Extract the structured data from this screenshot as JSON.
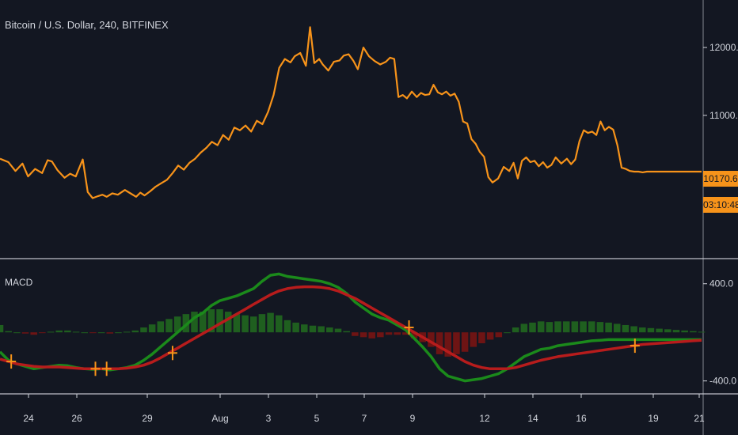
{
  "title": "Bitcoin / U.S. Dollar, 240, BITFINEX",
  "macd_label": "MACD",
  "last_price": "10170.6",
  "countdown": "03:10:48",
  "colors": {
    "background": "#131722",
    "price": "#f7931a",
    "macd": "#1b8a1b",
    "signal": "#b71c1c",
    "hist_up": "#1f5f1f",
    "hist_down": "#6e1414",
    "marker": "#f7931a",
    "separator": "#d1d4dc",
    "text": "#d1d4dc"
  },
  "chart_data": [
    {
      "type": "line",
      "name": "price",
      "title": "Bitcoin / U.S. Dollar, 240, BITFINEX",
      "y_ticks": [
        "12000.0",
        "11000.0"
      ],
      "y_tick_values": [
        12000,
        11000
      ],
      "ylim": [
        8900,
        12700
      ],
      "xlim": [
        0,
        1
      ],
      "x": [
        0,
        0.012,
        0.022,
        0.032,
        0.04,
        0.05,
        0.06,
        0.068,
        0.074,
        0.082,
        0.092,
        0.1,
        0.108,
        0.118,
        0.125,
        0.132,
        0.14,
        0.146,
        0.152,
        0.16,
        0.168,
        0.178,
        0.186,
        0.194,
        0.2,
        0.206,
        0.214,
        0.222,
        0.23,
        0.238,
        0.246,
        0.254,
        0.262,
        0.27,
        0.278,
        0.286,
        0.294,
        0.302,
        0.31,
        0.318,
        0.326,
        0.334,
        0.342,
        0.35,
        0.358,
        0.366,
        0.374,
        0.382,
        0.39,
        0.398,
        0.406,
        0.414,
        0.42,
        0.428,
        0.436,
        0.442,
        0.448,
        0.455,
        0.46,
        0.468,
        0.476,
        0.484,
        0.49,
        0.497,
        0.504,
        0.51,
        0.518,
        0.526,
        0.534,
        0.542,
        0.55,
        0.556,
        0.562,
        0.568,
        0.574,
        0.58,
        0.587,
        0.594,
        0.6,
        0.606,
        0.612,
        0.618,
        0.624,
        0.63,
        0.636,
        0.642,
        0.648,
        0.654,
        0.66,
        0.666,
        0.672,
        0.678,
        0.684,
        0.69,
        0.696,
        0.702,
        0.71,
        0.718,
        0.726,
        0.732,
        0.738,
        0.744,
        0.75,
        0.756,
        0.762,
        0.768,
        0.774,
        0.78,
        0.786,
        0.792,
        0.8,
        0.808,
        0.814,
        0.82,
        0.826,
        0.832,
        0.838,
        0.844,
        0.85,
        0.856,
        0.862,
        0.868,
        0.874,
        0.88,
        0.886,
        0.892,
        0.898,
        0.904,
        0.91,
        0.916,
        0.922,
        0.928,
        0.934,
        0.94,
        0.946,
        0.952,
        0.958,
        0.964,
        0.97,
        0.976,
        0.982,
        0.988,
        0.994,
        1.0
      ],
      "values": [
        10360,
        10310,
        10180,
        10290,
        10100,
        10210,
        10150,
        10340,
        10320,
        10190,
        10080,
        10140,
        10100,
        10350,
        9870,
        9780,
        9810,
        9830,
        9800,
        9850,
        9830,
        9900,
        9850,
        9800,
        9860,
        9820,
        9880,
        9950,
        10000,
        10050,
        10150,
        10260,
        10200,
        10300,
        10360,
        10450,
        10520,
        10610,
        10560,
        10710,
        10640,
        10820,
        10780,
        10850,
        10760,
        10920,
        10870,
        11050,
        11300,
        11700,
        11830,
        11780,
        11870,
        11920,
        11730,
        12300,
        11770,
        11830,
        11750,
        11660,
        11790,
        11810,
        11880,
        11900,
        11800,
        11680,
        12000,
        11870,
        11800,
        11750,
        11790,
        11850,
        11830,
        11270,
        11300,
        11250,
        11350,
        11270,
        11330,
        11300,
        11310,
        11450,
        11340,
        11310,
        11350,
        11290,
        11320,
        11200,
        10910,
        10880,
        10650,
        10580,
        10460,
        10390,
        10090,
        10010,
        10070,
        10240,
        10180,
        10300,
        10070,
        10330,
        10380,
        10310,
        10330,
        10250,
        10310,
        10230,
        10270,
        10380,
        10290,
        10360,
        10280,
        10350,
        10620,
        10780,
        10740,
        10760,
        10710,
        10910,
        10780,
        10830,
        10790,
        10560,
        10230,
        10210,
        10180,
        10170,
        10170,
        10160,
        10170,
        10170,
        10170,
        10170,
        10170,
        10170,
        10170,
        10170,
        10170,
        10170,
        10170,
        10170,
        10170,
        10170
      ]
    },
    {
      "type": "line",
      "name": "MACD",
      "y_ticks": [
        "400.0",
        "-400.0"
      ],
      "y_tick_values": [
        400,
        -400
      ],
      "ylim": [
        -500,
        600
      ],
      "x_ticks": [
        "24",
        "26",
        "29",
        "Aug",
        "3",
        "5",
        "7",
        "9",
        "12",
        "14",
        "16",
        "19",
        "21"
      ],
      "series": [
        {
          "key": "macd",
          "values": [
            -160,
            -230,
            -260,
            -280,
            -300,
            -290,
            -280,
            -270,
            -275,
            -290,
            -300,
            -305,
            -300,
            -310,
            -300,
            -290,
            -270,
            -230,
            -180,
            -120,
            -60,
            0,
            60,
            120,
            160,
            220,
            260,
            280,
            300,
            330,
            360,
            420,
            470,
            480,
            460,
            450,
            440,
            430,
            420,
            400,
            370,
            320,
            250,
            200,
            150,
            120,
            100,
            60,
            20,
            -50,
            -120,
            -200,
            -300,
            -360,
            -380,
            -400,
            -390,
            -380,
            -360,
            -340,
            -300,
            -250,
            -200,
            -170,
            -140,
            -130,
            -110,
            -100,
            -90,
            -80,
            -70,
            -65,
            -60,
            -60,
            -60,
            -60,
            -60,
            -60,
            -60,
            -60,
            -60,
            -60,
            -60,
            -60
          ]
        },
        {
          "key": "signal",
          "values": [
            -220,
            -240,
            -260,
            -270,
            -280,
            -285,
            -285,
            -285,
            -290,
            -295,
            -300,
            -300,
            -300,
            -300,
            -300,
            -295,
            -285,
            -270,
            -245,
            -210,
            -170,
            -130,
            -90,
            -50,
            -10,
            30,
            70,
            110,
            150,
            190,
            230,
            270,
            310,
            340,
            360,
            370,
            375,
            375,
            370,
            360,
            340,
            310,
            280,
            240,
            200,
            160,
            120,
            80,
            40,
            0,
            -40,
            -80,
            -120,
            -160,
            -200,
            -240,
            -270,
            -290,
            -300,
            -300,
            -300,
            -290,
            -270,
            -250,
            -230,
            -215,
            -200,
            -190,
            -180,
            -170,
            -160,
            -150,
            -140,
            -130,
            -120,
            -110,
            -100,
            -95,
            -90,
            -85,
            -80,
            -75,
            -70,
            -65
          ]
        }
      ],
      "histogram": [
        60,
        10,
        0,
        -10,
        -20,
        -5,
        5,
        15,
        15,
        5,
        0,
        -5,
        0,
        -10,
        0,
        5,
        15,
        40,
        65,
        90,
        110,
        130,
        150,
        170,
        170,
        190,
        190,
        170,
        150,
        140,
        130,
        150,
        160,
        140,
        100,
        80,
        65,
        55,
        50,
        40,
        30,
        10,
        -30,
        -40,
        -50,
        -40,
        -20,
        -20,
        -20,
        -50,
        -80,
        -120,
        -180,
        -200,
        -180,
        -160,
        -120,
        -90,
        -60,
        -40,
        0,
        40,
        70,
        80,
        90,
        85,
        90,
        90,
        90,
        90,
        90,
        85,
        80,
        70,
        60,
        50,
        40,
        35,
        30,
        25,
        20,
        15,
        10,
        5
      ],
      "markers": [
        0.016,
        0.136,
        0.152,
        0.246,
        0.583,
        0.905
      ]
    }
  ]
}
